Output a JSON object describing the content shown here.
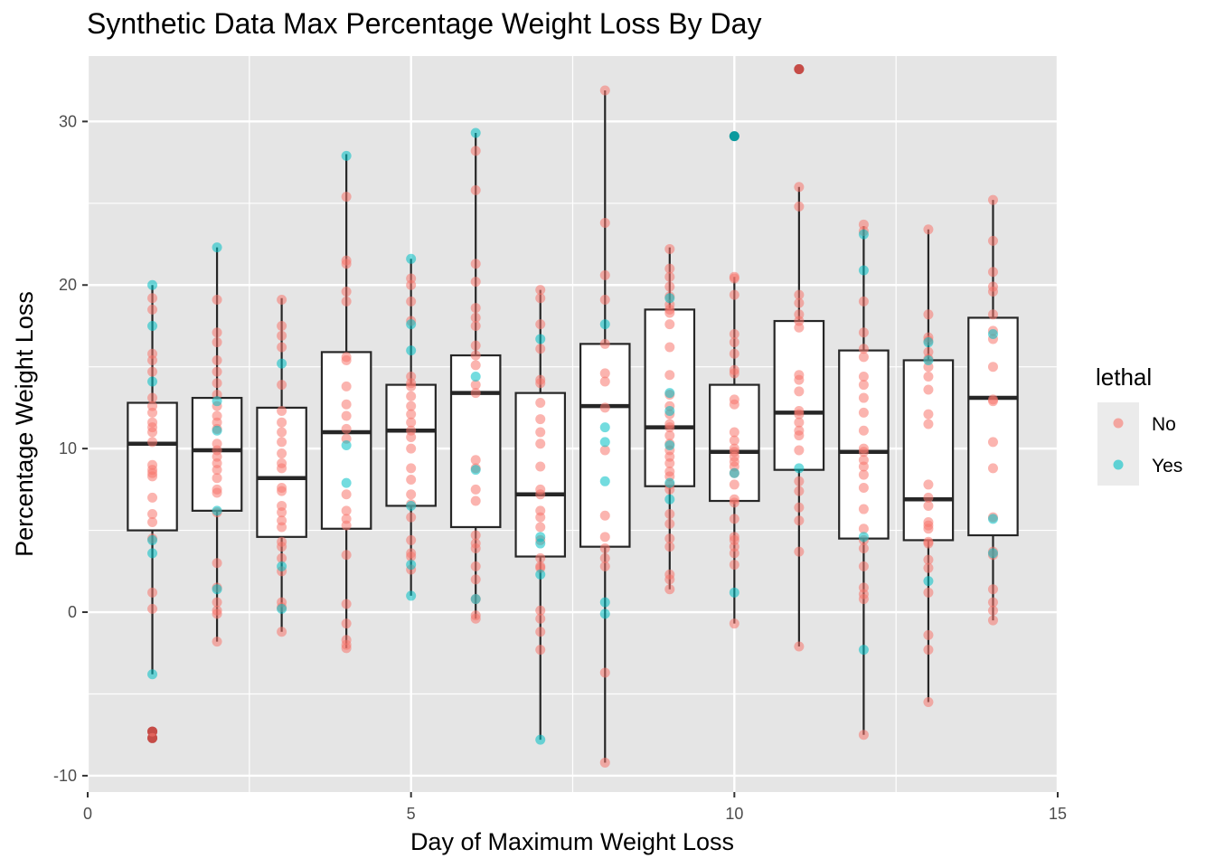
{
  "chart_data": {
    "type": "box+jitter",
    "title": "Synthetic Data Max Percentage Weight Loss By Day",
    "xlabel": "Day of Maximum Weight Loss",
    "ylabel": "Percentage Weight Loss",
    "xlim": [
      0,
      15
    ],
    "ylim": [
      -11,
      34
    ],
    "xticks": [
      0,
      5,
      10,
      15
    ],
    "yticks": [
      -10,
      0,
      10,
      20,
      30
    ],
    "grid": true,
    "legend": {
      "title": "lethal",
      "position": "right",
      "entries": [
        {
          "label": "No",
          "color": "#F8766D"
        },
        {
          "label": "Yes",
          "color": "#00BFC4"
        }
      ]
    },
    "colors": {
      "panel": "#E5E5E5",
      "grid": "#FFFFFF",
      "box_fill": "#FFFFFF",
      "box_line": "#262626"
    },
    "boxes": [
      {
        "day": 1,
        "q1": 5.0,
        "median": 10.3,
        "q3": 12.8,
        "whisker_low": -3.8,
        "whisker_high": 20.0
      },
      {
        "day": 2,
        "q1": 6.2,
        "median": 9.9,
        "q3": 13.1,
        "whisker_low": -1.8,
        "whisker_high": 22.3
      },
      {
        "day": 3,
        "q1": 4.6,
        "median": 8.2,
        "q3": 12.5,
        "whisker_low": -1.2,
        "whisker_high": 19.2
      },
      {
        "day": 4,
        "q1": 5.1,
        "median": 11.0,
        "q3": 15.9,
        "whisker_low": -2.2,
        "whisker_high": 28.0
      },
      {
        "day": 5,
        "q1": 6.5,
        "median": 11.1,
        "q3": 13.9,
        "whisker_low": 1.0,
        "whisker_high": 21.6
      },
      {
        "day": 6,
        "q1": 5.2,
        "median": 13.4,
        "q3": 15.7,
        "whisker_low": -0.4,
        "whisker_high": 29.3
      },
      {
        "day": 7,
        "q1": 3.4,
        "median": 7.2,
        "q3": 13.4,
        "whisker_low": -7.8,
        "whisker_high": 19.7
      },
      {
        "day": 8,
        "q1": 4.0,
        "median": 12.6,
        "q3": 16.4,
        "whisker_low": -9.2,
        "whisker_high": 31.9
      },
      {
        "day": 9,
        "q1": 7.7,
        "median": 11.3,
        "q3": 18.5,
        "whisker_low": 1.4,
        "whisker_high": 22.3
      },
      {
        "day": 10,
        "q1": 6.8,
        "median": 9.8,
        "q3": 13.9,
        "whisker_low": -0.7,
        "whisker_high": 20.5
      },
      {
        "day": 11,
        "q1": 8.7,
        "median": 12.2,
        "q3": 17.8,
        "whisker_low": -2.1,
        "whisker_high": 26.0
      },
      {
        "day": 12,
        "q1": 4.5,
        "median": 9.8,
        "q3": 16.0,
        "whisker_low": -7.5,
        "whisker_high": 23.6
      },
      {
        "day": 13,
        "q1": 4.4,
        "median": 6.9,
        "q3": 15.4,
        "whisker_low": -5.5,
        "whisker_high": 23.4
      },
      {
        "day": 14,
        "q1": 4.7,
        "median": 13.1,
        "q3": 18.0,
        "whisker_low": -0.5,
        "whisker_high": 25.2
      }
    ],
    "outliers": [
      {
        "day": 1,
        "y": -7.3,
        "color": "#8B1A1A"
      },
      {
        "day": 1,
        "y": -7.7,
        "color": "#8B1A1A"
      },
      {
        "day": 10,
        "y": 29.1,
        "color": "#1A6E70"
      },
      {
        "day": 11,
        "y": 33.2,
        "color": "#8B1A1A"
      }
    ],
    "points": [
      {
        "day": 1,
        "lethal": "No",
        "y": [
          19.2,
          18.5,
          15.8,
          15.4,
          14.7,
          13.1,
          12.6,
          12.2,
          11.6,
          11.3,
          11.0,
          10.4,
          9.0,
          8.7,
          8.5,
          8.3,
          7.0,
          6.0,
          5.5,
          4.5,
          1.2,
          0.2,
          -7.3,
          -7.7
        ]
      },
      {
        "day": 1,
        "lethal": "Yes",
        "y": [
          20.0,
          17.5,
          14.1,
          4.4,
          3.6,
          -3.8
        ]
      },
      {
        "day": 2,
        "lethal": "No",
        "y": [
          19.1,
          17.1,
          16.5,
          15.4,
          14.7,
          14.0,
          13.3,
          12.6,
          12.0,
          11.6,
          11.2,
          10.3,
          9.9,
          9.5,
          9.1,
          8.7,
          8.2,
          7.5,
          7.3,
          6.1,
          3.0,
          1.5,
          0.6,
          0.1,
          -0.1,
          -1.8
        ]
      },
      {
        "day": 2,
        "lethal": "Yes",
        "y": [
          22.3,
          12.9,
          11.1,
          6.2,
          1.4
        ]
      },
      {
        "day": 3,
        "lethal": "No",
        "y": [
          19.1,
          17.5,
          16.9,
          16.2,
          13.9,
          12.3,
          11.6,
          11.0,
          10.4,
          9.7,
          9.1,
          8.8,
          7.6,
          7.4,
          6.5,
          6.1,
          5.6,
          5.2,
          4.3,
          4.0,
          3.3,
          2.5,
          0.6,
          0.3,
          -1.2
        ]
      },
      {
        "day": 3,
        "lethal": "Yes",
        "y": [
          15.2,
          2.8,
          0.2
        ]
      },
      {
        "day": 4,
        "lethal": "No",
        "y": [
          25.4,
          21.5,
          21.3,
          19.6,
          19.0,
          15.6,
          15.4,
          13.8,
          12.7,
          12.0,
          11.2,
          10.6,
          7.2,
          6.2,
          5.7,
          5.3,
          3.5,
          0.5,
          -0.7,
          -1.7,
          -2.0,
          -2.2
        ]
      },
      {
        "day": 4,
        "lethal": "Yes",
        "y": [
          27.9,
          10.2,
          7.9
        ]
      },
      {
        "day": 5,
        "lethal": "No",
        "y": [
          20.4,
          20.0,
          19.0,
          17.8,
          14.4,
          14.0,
          13.8,
          13.2,
          12.6,
          12.1,
          11.6,
          11.1,
          10.7,
          10.0,
          8.8,
          8.1,
          7.2,
          6.6,
          5.8,
          4.4,
          3.6,
          3.4,
          2.6
        ]
      },
      {
        "day": 5,
        "lethal": "Yes",
        "y": [
          21.6,
          17.6,
          16.0,
          6.5,
          2.9,
          1.0
        ]
      },
      {
        "day": 6,
        "lethal": "No",
        "y": [
          28.2,
          25.8,
          21.3,
          20.2,
          18.6,
          18.0,
          17.5,
          16.3,
          15.7,
          15.1,
          13.9,
          13.4,
          9.3,
          8.8,
          7.5,
          6.8,
          4.7,
          4.2,
          3.9,
          2.8,
          2.0,
          0.8,
          -0.2,
          -0.4
        ]
      },
      {
        "day": 6,
        "lethal": "Yes",
        "y": [
          29.3,
          14.4,
          8.7,
          0.8
        ]
      },
      {
        "day": 7,
        "lethal": "No",
        "y": [
          19.7,
          19.2,
          17.6,
          16.1,
          14.2,
          14.0,
          12.8,
          11.8,
          11.0,
          10.3,
          8.9,
          7.5,
          7.2,
          6.2,
          5.8,
          5.2,
          4.4,
          3.3,
          2.8,
          2.7,
          0.1,
          -0.4,
          -1.2,
          -2.3
        ]
      },
      {
        "day": 7,
        "lethal": "Yes",
        "y": [
          16.7,
          4.6,
          4.2,
          2.3,
          -7.8
        ]
      },
      {
        "day": 8,
        "lethal": "No",
        "y": [
          31.9,
          23.8,
          20.6,
          19.1,
          16.4,
          14.6,
          14.1,
          12.5,
          9.9,
          5.9,
          4.6,
          3.9,
          3.3,
          2.8,
          -3.7,
          -9.2
        ]
      },
      {
        "day": 8,
        "lethal": "Yes",
        "y": [
          17.6,
          11.3,
          10.4,
          8.0,
          0.6,
          -0.1
        ]
      },
      {
        "day": 9,
        "lethal": "No",
        "y": [
          22.2,
          21.0,
          20.5,
          19.9,
          19.3,
          18.8,
          18.5,
          18.3,
          17.6,
          16.2,
          14.5,
          13.3,
          12.6,
          12.1,
          11.5,
          11.3,
          10.8,
          10.3,
          9.9,
          9.5,
          9.1,
          8.6,
          8.3,
          7.8,
          7.5,
          6.0,
          5.4,
          4.5,
          4.0,
          2.3,
          2.0,
          1.4
        ]
      },
      {
        "day": 9,
        "lethal": "Yes",
        "y": [
          19.2,
          13.4,
          12.3,
          10.2,
          7.9,
          6.9
        ]
      },
      {
        "day": 10,
        "lethal": "No",
        "y": [
          20.5,
          20.4,
          19.4,
          17.0,
          16.5,
          15.8,
          14.8,
          14.6,
          13.0,
          12.7,
          11.0,
          10.5,
          10.0,
          9.8,
          9.5,
          9.2,
          8.9,
          8.5,
          7.8,
          6.9,
          6.7,
          5.7,
          4.6,
          4.4,
          4.0,
          3.6,
          2.9,
          -0.7
        ]
      },
      {
        "day": 10,
        "lethal": "Yes",
        "y": [
          8.5,
          1.2,
          29.1
        ]
      },
      {
        "day": 11,
        "lethal": "No",
        "y": [
          26.0,
          24.8,
          19.4,
          18.9,
          18.2,
          17.8,
          17.4,
          14.5,
          14.2,
          13.5,
          12.3,
          12.1,
          11.6,
          11.1,
          10.8,
          9.9,
          8.0,
          7.4,
          6.4,
          5.6,
          3.7,
          -2.1,
          33.2
        ]
      },
      {
        "day": 11,
        "lethal": "Yes",
        "y": [
          8.8
        ]
      },
      {
        "day": 12,
        "lethal": "No",
        "y": [
          23.7,
          23.3,
          19.0,
          17.1,
          16.1,
          15.6,
          14.4,
          13.9,
          13.1,
          12.2,
          11.1,
          10.0,
          9.8,
          9.3,
          8.9,
          8.4,
          7.6,
          6.3,
          5.1,
          4.4,
          3.9,
          2.8,
          1.5,
          1.1,
          0.8,
          -7.5
        ]
      },
      {
        "day": 12,
        "lethal": "Yes",
        "y": [
          23.1,
          20.9,
          4.6,
          -2.3
        ]
      },
      {
        "day": 13,
        "lethal": "No",
        "y": [
          23.4,
          18.2,
          16.8,
          16.6,
          15.9,
          15.5,
          15.0,
          14.4,
          13.6,
          12.1,
          11.5,
          7.8,
          7.0,
          6.5,
          5.5,
          5.3,
          5.1,
          4.3,
          4.2,
          3.2,
          2.7,
          1.2,
          -1.4,
          -2.3,
          -5.5
        ]
      },
      {
        "day": 13,
        "lethal": "Yes",
        "y": [
          16.5,
          15.4,
          1.9
        ]
      },
      {
        "day": 14,
        "lethal": "No",
        "y": [
          25.2,
          22.7,
          20.8,
          19.9,
          19.6,
          18.2,
          17.2,
          16.7,
          15.0,
          13.0,
          12.9,
          10.4,
          8.8,
          5.8,
          3.7,
          3.5,
          1.4,
          0.6,
          0.1,
          -0.5
        ]
      },
      {
        "day": 14,
        "lethal": "Yes",
        "y": [
          17.0,
          5.7,
          3.6
        ]
      }
    ]
  }
}
